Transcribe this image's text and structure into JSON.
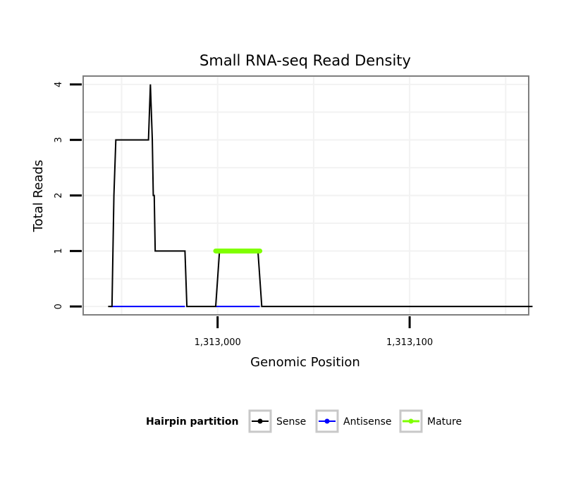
{
  "chart_data": {
    "type": "line",
    "title": "Small RNA-seq Read Density",
    "xlabel": "Genomic Position",
    "ylabel": "Total Reads",
    "xlim": [
      1312930,
      1313162
    ],
    "ylim": [
      -0.15,
      4.15
    ],
    "x_ticks": [
      1313000,
      1313100
    ],
    "x_tick_labels": [
      "1,313,000",
      "1,313,100"
    ],
    "y_ticks": [
      0,
      1,
      2,
      3,
      4
    ],
    "y_tick_labels": [
      "0",
      "1",
      "2",
      "3",
      "4"
    ],
    "grid": true,
    "legend": {
      "title": "Hairpin partition",
      "position": "bottom",
      "entries": [
        {
          "label": "Sense",
          "color": "#000000"
        },
        {
          "label": "Antisense",
          "color": "#0000ff"
        },
        {
          "label": "Mature",
          "color": "#7fff00"
        }
      ]
    },
    "series": [
      {
        "name": "Sense",
        "color": "#000000",
        "x": [
          1312943,
          1312945,
          1312946,
          1312947,
          1312964,
          1312965,
          1312966,
          1312966.5,
          1312967,
          1312967.5,
          1312968.5,
          1312983,
          1312984,
          1312998,
          1312999,
          1313001,
          1313021,
          1313023,
          1313046,
          1313164
        ],
        "y": [
          0,
          0,
          2,
          3,
          3,
          4,
          3,
          2,
          2,
          1,
          1,
          1,
          0,
          0,
          0,
          1,
          1,
          0,
          0,
          0
        ]
      },
      {
        "name": "Antisense",
        "color": "#0000ff",
        "x": [
          1312944,
          1312983,
          1312999,
          1313022
        ],
        "y": [
          0,
          0,
          0,
          0
        ],
        "segments": [
          [
            0,
            1
          ],
          [
            2,
            3
          ]
        ]
      },
      {
        "name": "Mature",
        "color": "#7fff00",
        "x": [
          1312999,
          1313022
        ],
        "y": [
          1,
          1
        ]
      }
    ]
  }
}
